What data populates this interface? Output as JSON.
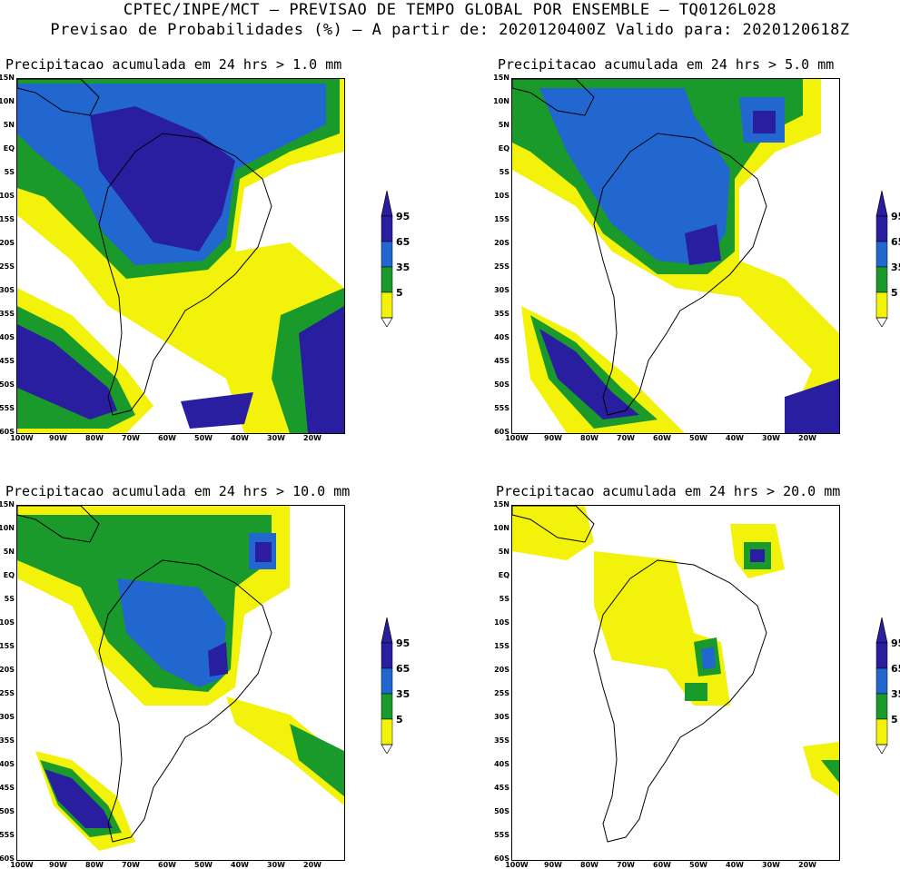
{
  "header": {
    "line1": "CPTEC/INPE/MCT — PREVISAO DE TEMPO GLOBAL POR ENSEMBLE — TQ0126L028",
    "line2": "Previsao de Probabilidades (%) —  A partir de: 2020120400Z  Valido para: 2020120618Z"
  },
  "panels": [
    {
      "title": "Precipitacao acumulada em 24 hrs > 1.0 mm"
    },
    {
      "title": "Precipitacao acumulada em 24 hrs > 5.0 mm"
    },
    {
      "title": "Precipitacao acumulada em 24 hrs > 10.0 mm"
    },
    {
      "title": "Precipitacao acumulada em 24 hrs > 20.0 mm"
    }
  ],
  "axes": {
    "lat_labels": [
      "15N",
      "10N",
      "5N",
      "EQ",
      "5S",
      "10S",
      "15S",
      "20S",
      "25S",
      "30S",
      "35S",
      "40S",
      "45S",
      "50S",
      "55S",
      "60S"
    ],
    "lon_labels": [
      "100W",
      "90W",
      "80W",
      "70W",
      "60W",
      "50W",
      "40W",
      "30W",
      "20W"
    ]
  },
  "colorbar": {
    "levels": [
      "95",
      "65",
      "35",
      "5"
    ],
    "colors": {
      "c95": "#2a1ea0",
      "c65": "#2266d0",
      "c35": "#1a9a2a",
      "c5": "#f2f20a"
    }
  }
}
